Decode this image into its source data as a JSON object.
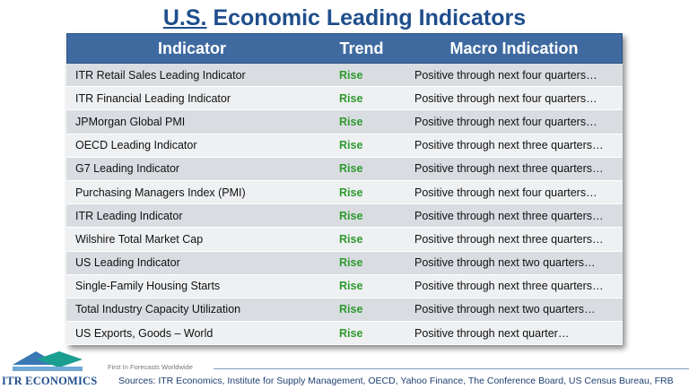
{
  "title": {
    "part1": "U.S.",
    "part2": " Economic Leading Indicators"
  },
  "table": {
    "headers": [
      "Indicator",
      "Trend",
      "Macro Indication"
    ],
    "rows": [
      {
        "indicator": "ITR Retail Sales Leading Indicator",
        "trend": "Rise",
        "macro": "Positive through next four quarters…"
      },
      {
        "indicator": "ITR Financial Leading Indicator",
        "trend": "Rise",
        "macro": "Positive through next four quarters…"
      },
      {
        "indicator": "JPMorgan Global PMI",
        "trend": "Rise",
        "macro": "Positive through next four quarters…"
      },
      {
        "indicator": "OECD Leading Indicator",
        "trend": "Rise",
        "macro": "Positive through next three quarters…"
      },
      {
        "indicator": "G7 Leading Indicator",
        "trend": "Rise",
        "macro": "Positive through next three quarters…"
      },
      {
        "indicator": "Purchasing Managers Index (PMI)",
        "trend": "Rise",
        "macro": "Positive through next four quarters…"
      },
      {
        "indicator": "ITR Leading Indicator",
        "trend": "Rise",
        "macro": "Positive through next three quarters…"
      },
      {
        "indicator": "Wilshire Total Market Cap",
        "trend": "Rise",
        "macro": "Positive through next three quarters…"
      },
      {
        "indicator": "US Leading Indicator",
        "trend": "Rise",
        "macro": "Positive through next two quarters…"
      },
      {
        "indicator": "Single-Family Housing Starts",
        "trend": "Rise",
        "macro": "Positive through next three quarters…"
      },
      {
        "indicator": "Total Industry Capacity Utilization",
        "trend": "Rise",
        "macro": "Positive through next two quarters…"
      },
      {
        "indicator": "US Exports, Goods – World",
        "trend": "Rise",
        "macro": "Positive through next quarter…"
      }
    ]
  },
  "footer": {
    "logo_text": "ITR ECONOMICS",
    "tagline": "First In Forecasts Worldwide",
    "sources": "Sources: ITR Economics, Institute for Supply Management, OECD, Yahoo Finance, The Conference Board, US Census Bureau, FRB",
    "logo_icon": "itr-logo-icon"
  },
  "colors": {
    "title": "#1f4e8c",
    "header_bg": "#3e6aa0",
    "trend_green": "#2e9a2e",
    "row_dark": "#d9dde2",
    "row_light": "#eef0f2"
  }
}
